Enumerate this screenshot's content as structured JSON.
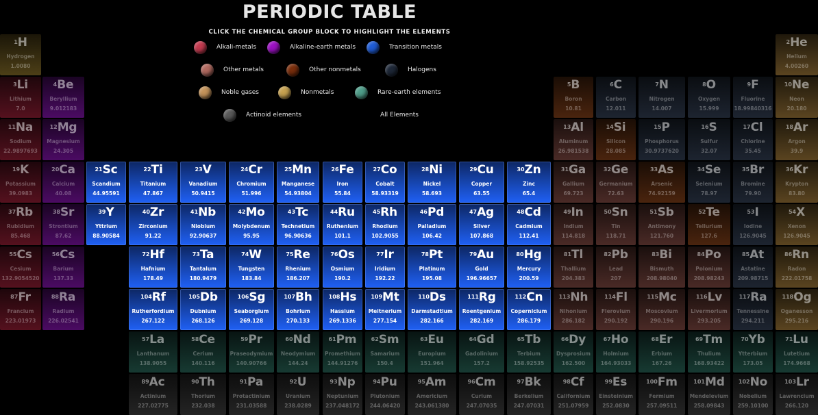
{
  "header": {
    "title": "PERIODIC TABLE",
    "subtitle": "CLICK THE CHEMICAL GROUP BLOCK TO HIGHLIGHT THE ELEMENTS"
  },
  "legend": [
    {
      "label": "Alkali-metals",
      "color": "#c43a4f"
    },
    {
      "label": "Alkaline-earth metals",
      "color": "#9c10c4"
    },
    {
      "label": "Transition metals",
      "color": "#1f5cd6"
    },
    {
      "label": "Other metals",
      "color": "#b26a60"
    },
    {
      "label": "Other nonmetals",
      "color": "#7a2e0c"
    },
    {
      "label": "Halogens",
      "color": "#1e2838"
    },
    {
      "label": "Noble gases",
      "color": "#c4935a"
    },
    {
      "label": "Nonmetals",
      "color": "#c7a250"
    },
    {
      "label": "Rare-earth elements",
      "color": "#4f9e8a"
    },
    {
      "label": "Actinoid elements",
      "color": "#5a5a5a"
    },
    {
      "label": "All Elements",
      "color": ""
    }
  ],
  "groups": {
    "alkali": {
      "bg": "#55111e"
    },
    "alkaline": {
      "bg": "#4b0b63"
    },
    "transition": {
      "bg": "#1747b5"
    },
    "othermetal": {
      "bg": "#4a2a26"
    },
    "othernonmetal": {
      "bg": "#4a240e"
    },
    "halogen": {
      "bg": "#1d2430"
    },
    "noble": {
      "bg": "#5a4420"
    },
    "nonmetal": {
      "bg": "#4d3f17"
    },
    "rareearth": {
      "bg": "#173a32"
    },
    "actinoid": {
      "bg": "#242424"
    }
  },
  "elements": [
    {
      "n": "1",
      "s": "H",
      "name": "Hydrogen",
      "w": "1.0080",
      "g": "nonmetal",
      "r": 1,
      "c": 1
    },
    {
      "n": "2",
      "s": "He",
      "name": "Helium",
      "w": "4.00260",
      "g": "noble",
      "r": 1,
      "c": 18
    },
    {
      "n": "3",
      "s": "Li",
      "name": "Lithium",
      "w": "7.0",
      "g": "alkali",
      "r": 2,
      "c": 1
    },
    {
      "n": "4",
      "s": "Be",
      "name": "Beryllium",
      "w": "9.012183",
      "g": "alkaline",
      "r": 2,
      "c": 2
    },
    {
      "n": "5",
      "s": "B",
      "name": "Boron",
      "w": "10.81",
      "g": "othernonmetal",
      "r": 2,
      "c": 13
    },
    {
      "n": "6",
      "s": "C",
      "name": "Carbon",
      "w": "12.011",
      "g": "halogen",
      "r": 2,
      "c": 14
    },
    {
      "n": "7",
      "s": "N",
      "name": "Nitrogen",
      "w": "14.007",
      "g": "halogen",
      "r": 2,
      "c": 15
    },
    {
      "n": "8",
      "s": "O",
      "name": "Oxygen",
      "w": "15.999",
      "g": "halogen",
      "r": 2,
      "c": 16
    },
    {
      "n": "9",
      "s": "F",
      "name": "Fluorine",
      "w": "18.99840316",
      "g": "halogen",
      "r": 2,
      "c": 17
    },
    {
      "n": "10",
      "s": "Ne",
      "name": "Neon",
      "w": "20.180",
      "g": "noble",
      "r": 2,
      "c": 18
    },
    {
      "n": "11",
      "s": "Na",
      "name": "Sodium",
      "w": "22.9897693",
      "g": "alkali",
      "r": 3,
      "c": 1
    },
    {
      "n": "12",
      "s": "Mg",
      "name": "Magnesium",
      "w": "24.305",
      "g": "alkaline",
      "r": 3,
      "c": 2
    },
    {
      "n": "13",
      "s": "Al",
      "name": "Aluminum",
      "w": "26.981538",
      "g": "othermetal",
      "r": 3,
      "c": 13
    },
    {
      "n": "14",
      "s": "Si",
      "name": "Silicon",
      "w": "28.085",
      "g": "othernonmetal",
      "r": 3,
      "c": 14
    },
    {
      "n": "15",
      "s": "P",
      "name": "Phosphorus",
      "w": "30.9737620",
      "g": "halogen",
      "r": 3,
      "c": 15
    },
    {
      "n": "16",
      "s": "S",
      "name": "Sulfur",
      "w": "32.07",
      "g": "halogen",
      "r": 3,
      "c": 16
    },
    {
      "n": "17",
      "s": "Cl",
      "name": "Chlorine",
      "w": "35.45",
      "g": "halogen",
      "r": 3,
      "c": 17
    },
    {
      "n": "18",
      "s": "Ar",
      "name": "Argon",
      "w": "39.9",
      "g": "noble",
      "r": 3,
      "c": 18
    },
    {
      "n": "19",
      "s": "K",
      "name": "Potassium",
      "w": "39.0983",
      "g": "alkali",
      "r": 4,
      "c": 1
    },
    {
      "n": "20",
      "s": "Ca",
      "name": "Calcium",
      "w": "40.08",
      "g": "alkaline",
      "r": 4,
      "c": 2
    },
    {
      "n": "21",
      "s": "Sc",
      "name": "Scandium",
      "w": "44.95591",
      "g": "transition",
      "r": 4,
      "c": 3
    },
    {
      "n": "22",
      "s": "Ti",
      "name": "Titanium",
      "w": "47.867",
      "g": "transition",
      "r": 4,
      "c": 4
    },
    {
      "n": "23",
      "s": "V",
      "name": "Vanadium",
      "w": "50.9415",
      "g": "transition",
      "r": 4,
      "c": 5
    },
    {
      "n": "24",
      "s": "Cr",
      "name": "Chromium",
      "w": "51.996",
      "g": "transition",
      "r": 4,
      "c": 6
    },
    {
      "n": "25",
      "s": "Mn",
      "name": "Manganese",
      "w": "54.93804",
      "g": "transition",
      "r": 4,
      "c": 7
    },
    {
      "n": "26",
      "s": "Fe",
      "name": "Iron",
      "w": "55.84",
      "g": "transition",
      "r": 4,
      "c": 8
    },
    {
      "n": "27",
      "s": "Co",
      "name": "Cobalt",
      "w": "58.93319",
      "g": "transition",
      "r": 4,
      "c": 9
    },
    {
      "n": "28",
      "s": "Ni",
      "name": "Nickel",
      "w": "58.693",
      "g": "transition",
      "r": 4,
      "c": 10
    },
    {
      "n": "29",
      "s": "Cu",
      "name": "Copper",
      "w": "63.55",
      "g": "transition",
      "r": 4,
      "c": 11
    },
    {
      "n": "30",
      "s": "Zn",
      "name": "Zinc",
      "w": "65.4",
      "g": "transition",
      "r": 4,
      "c": 12
    },
    {
      "n": "31",
      "s": "Ga",
      "name": "Gallium",
      "w": "69.723",
      "g": "othermetal",
      "r": 4,
      "c": 13
    },
    {
      "n": "32",
      "s": "Ge",
      "name": "Germanium",
      "w": "72.63",
      "g": "othermetal",
      "r": 4,
      "c": 14
    },
    {
      "n": "33",
      "s": "As",
      "name": "Arsenic",
      "w": "74.92159",
      "g": "othernonmetal",
      "r": 4,
      "c": 15
    },
    {
      "n": "34",
      "s": "Se",
      "name": "Selenium",
      "w": "78.97",
      "g": "halogen",
      "r": 4,
      "c": 16
    },
    {
      "n": "35",
      "s": "Br",
      "name": "Bromine",
      "w": "79.90",
      "g": "halogen",
      "r": 4,
      "c": 17
    },
    {
      "n": "36",
      "s": "Kr",
      "name": "Krypton",
      "w": "83.80",
      "g": "noble",
      "r": 4,
      "c": 18
    },
    {
      "n": "37",
      "s": "Rb",
      "name": "Rubidium",
      "w": "85.468",
      "g": "alkali",
      "r": 5,
      "c": 1
    },
    {
      "n": "38",
      "s": "Sr",
      "name": "Strontium",
      "w": "87.62",
      "g": "alkaline",
      "r": 5,
      "c": 2
    },
    {
      "n": "39",
      "s": "Y",
      "name": "Yttrium",
      "w": "88.90584",
      "g": "transition",
      "r": 5,
      "c": 3
    },
    {
      "n": "40",
      "s": "Zr",
      "name": "Zirconium",
      "w": "91.22",
      "g": "transition",
      "r": 5,
      "c": 4
    },
    {
      "n": "41",
      "s": "Nb",
      "name": "Niobium",
      "w": "92.90637",
      "g": "transition",
      "r": 5,
      "c": 5
    },
    {
      "n": "42",
      "s": "Mo",
      "name": "Molybdenum",
      "w": "95.95",
      "g": "transition",
      "r": 5,
      "c": 6
    },
    {
      "n": "43",
      "s": "Tc",
      "name": "Technetium",
      "w": "96.90636",
      "g": "transition",
      "r": 5,
      "c": 7
    },
    {
      "n": "44",
      "s": "Ru",
      "name": "Ruthenium",
      "w": "101.1",
      "g": "transition",
      "r": 5,
      "c": 8
    },
    {
      "n": "45",
      "s": "Rh",
      "name": "Rhodium",
      "w": "102.9055",
      "g": "transition",
      "r": 5,
      "c": 9
    },
    {
      "n": "46",
      "s": "Pd",
      "name": "Palladium",
      "w": "106.42",
      "g": "transition",
      "r": 5,
      "c": 10
    },
    {
      "n": "47",
      "s": "Ag",
      "name": "Silver",
      "w": "107.868",
      "g": "transition",
      "r": 5,
      "c": 11
    },
    {
      "n": "48",
      "s": "Cd",
      "name": "Cadmium",
      "w": "112.41",
      "g": "transition",
      "r": 5,
      "c": 12
    },
    {
      "n": "49",
      "s": "In",
      "name": "Indium",
      "w": "114.818",
      "g": "othermetal",
      "r": 5,
      "c": 13
    },
    {
      "n": "50",
      "s": "Sn",
      "name": "Tin",
      "w": "118.71",
      "g": "othermetal",
      "r": 5,
      "c": 14
    },
    {
      "n": "51",
      "s": "Sb",
      "name": "Antimony",
      "w": "121.760",
      "g": "othermetal",
      "r": 5,
      "c": 15
    },
    {
      "n": "52",
      "s": "Te",
      "name": "Tellurium",
      "w": "127.6",
      "g": "othernonmetal",
      "r": 5,
      "c": 16
    },
    {
      "n": "53",
      "s": "I",
      "name": "Iodine",
      "w": "126.9045",
      "g": "halogen",
      "r": 5,
      "c": 17
    },
    {
      "n": "54",
      "s": "X",
      "name": "Xenon",
      "w": "126.9045",
      "g": "noble",
      "r": 5,
      "c": 18
    },
    {
      "n": "55",
      "s": "Cs",
      "name": "Cesium",
      "w": "132.9054520",
      "g": "alkali",
      "r": 6,
      "c": 1
    },
    {
      "n": "56",
      "s": "Cs",
      "name": "Barium",
      "w": "137.33",
      "g": "alkaline",
      "r": 6,
      "c": 2
    },
    {
      "n": "72",
      "s": "Hf",
      "name": "Hafnium",
      "w": "178.49",
      "g": "transition",
      "r": 6,
      "c": 4
    },
    {
      "n": "73",
      "s": "Ta",
      "name": "Tantalum",
      "w": "180.9479",
      "g": "transition",
      "r": 6,
      "c": 5
    },
    {
      "n": "74",
      "s": "W",
      "name": "Tungsten",
      "w": "183.84",
      "g": "transition",
      "r": 6,
      "c": 6
    },
    {
      "n": "75",
      "s": "Re",
      "name": "Rhenium",
      "w": "186.207",
      "g": "transition",
      "r": 6,
      "c": 7
    },
    {
      "n": "76",
      "s": "Os",
      "name": "Osmium",
      "w": "190.2",
      "g": "transition",
      "r": 6,
      "c": 8
    },
    {
      "n": "77",
      "s": "Ir",
      "name": "Iridium",
      "w": "192.22",
      "g": "transition",
      "r": 6,
      "c": 9
    },
    {
      "n": "78",
      "s": "Pt",
      "name": "Platinum",
      "w": "195.08",
      "g": "transition",
      "r": 6,
      "c": 10
    },
    {
      "n": "79",
      "s": "Au",
      "name": "Gold",
      "w": "196.96657",
      "g": "transition",
      "r": 6,
      "c": 11
    },
    {
      "n": "80",
      "s": "Hg",
      "name": "Mercury",
      "w": "200.59",
      "g": "transition",
      "r": 6,
      "c": 12
    },
    {
      "n": "81",
      "s": "Tl",
      "name": "Thallium",
      "w": "204.383",
      "g": "othermetal",
      "r": 6,
      "c": 13
    },
    {
      "n": "82",
      "s": "Pb",
      "name": "Lead",
      "w": "207",
      "g": "othermetal",
      "r": 6,
      "c": 14
    },
    {
      "n": "83",
      "s": "Bi",
      "name": "Bismuth",
      "w": "208.98040",
      "g": "othermetal",
      "r": 6,
      "c": 15
    },
    {
      "n": "84",
      "s": "Po",
      "name": "Polonium",
      "w": "208.98243",
      "g": "othermetal",
      "r": 6,
      "c": 16
    },
    {
      "n": "85",
      "s": "At",
      "name": "Astatine",
      "w": "209.98715",
      "g": "halogen",
      "r": 6,
      "c": 17
    },
    {
      "n": "86",
      "s": "Rn",
      "name": "Radon",
      "w": "222.01758",
      "g": "noble",
      "r": 6,
      "c": 18
    },
    {
      "n": "87",
      "s": "Fr",
      "name": "Francium",
      "w": "223.01973",
      "g": "alkali",
      "r": 7,
      "c": 1
    },
    {
      "n": "88",
      "s": "Ra",
      "name": "Radium",
      "w": "226.02541",
      "g": "alkaline",
      "r": 7,
      "c": 2
    },
    {
      "n": "104",
      "s": "Rf",
      "name": "Rutherfordium",
      "w": "267.122",
      "g": "transition",
      "r": 7,
      "c": 4
    },
    {
      "n": "105",
      "s": "Db",
      "name": "Dubnium",
      "w": "268.126",
      "g": "transition",
      "r": 7,
      "c": 5
    },
    {
      "n": "106",
      "s": "Sg",
      "name": "Seaborgium",
      "w": "269.128",
      "g": "transition",
      "r": 7,
      "c": 6
    },
    {
      "n": "107",
      "s": "Bh",
      "name": "Bohrium",
      "w": "270.133",
      "g": "transition",
      "r": 7,
      "c": 7
    },
    {
      "n": "108",
      "s": "Hs",
      "name": "Hassium",
      "w": "269.1336",
      "g": "transition",
      "r": 7,
      "c": 8
    },
    {
      "n": "109",
      "s": "Mt",
      "name": "Meitnerium",
      "w": "277.154",
      "g": "transition",
      "r": 7,
      "c": 9
    },
    {
      "n": "110",
      "s": "Ds",
      "name": "Darmstadtium",
      "w": "282.166",
      "g": "transition",
      "r": 7,
      "c": 10
    },
    {
      "n": "111",
      "s": "Rg",
      "name": "Roentgenium",
      "w": "282.169",
      "g": "transition",
      "r": 7,
      "c": 11
    },
    {
      "n": "112",
      "s": "Cn",
      "name": "Copernicium",
      "w": "286.179",
      "g": "transition",
      "r": 7,
      "c": 12
    },
    {
      "n": "113",
      "s": "Nh",
      "name": "Nihonium",
      "w": "286.182",
      "g": "othermetal",
      "r": 7,
      "c": 13
    },
    {
      "n": "114",
      "s": "Fl",
      "name": "Flerovium",
      "w": "290.192",
      "g": "othermetal",
      "r": 7,
      "c": 14
    },
    {
      "n": "115",
      "s": "Mc",
      "name": "Moscovium",
      "w": "290.196",
      "g": "othermetal",
      "r": 7,
      "c": 15
    },
    {
      "n": "116",
      "s": "Lv",
      "name": "Livermorium",
      "w": "293.205",
      "g": "othermetal",
      "r": 7,
      "c": 16
    },
    {
      "n": "117",
      "s": "Ra",
      "name": "Tennessine",
      "w": "294.211",
      "g": "halogen",
      "r": 7,
      "c": 17
    },
    {
      "n": "118",
      "s": "Og",
      "name": "Oganesson",
      "w": "295.216",
      "g": "noble",
      "r": 7,
      "c": 18
    },
    {
      "n": "57",
      "s": "La",
      "name": "Lanthanum",
      "w": "138.9055",
      "g": "rareearth",
      "r": 8,
      "c": 4
    },
    {
      "n": "58",
      "s": "Ce",
      "name": "Cerium",
      "w": "140.116",
      "g": "rareearth",
      "r": 8,
      "c": 5
    },
    {
      "n": "59",
      "s": "Pr",
      "name": "Praseodymium",
      "w": "140.90766",
      "g": "rareearth",
      "r": 8,
      "c": 6
    },
    {
      "n": "60",
      "s": "Nd",
      "name": "Neodymium",
      "w": "144.24",
      "g": "rareearth",
      "r": 8,
      "c": 7
    },
    {
      "n": "61",
      "s": "Pm",
      "name": "Promethium",
      "w": "144.91276",
      "g": "rareearth",
      "r": 8,
      "c": 8
    },
    {
      "n": "62",
      "s": "Sm",
      "name": "Samarium",
      "w": "150.4",
      "g": "rareearth",
      "r": 8,
      "c": 9
    },
    {
      "n": "63",
      "s": "Eu",
      "name": "Europium",
      "w": "151.964",
      "g": "rareearth",
      "r": 8,
      "c": 10
    },
    {
      "n": "64",
      "s": "Gd",
      "name": "Gadolinium",
      "w": "157.2",
      "g": "rareearth",
      "r": 8,
      "c": 11
    },
    {
      "n": "65",
      "s": "Tb",
      "name": "Terbium",
      "w": "158.92535",
      "g": "rareearth",
      "r": 8,
      "c": 12
    },
    {
      "n": "66",
      "s": "Dy",
      "name": "Dysprosium",
      "w": "162.500",
      "g": "rareearth",
      "r": 8,
      "c": 13
    },
    {
      "n": "67",
      "s": "Ho",
      "name": "Holmium",
      "w": "164.93033",
      "g": "rareearth",
      "r": 8,
      "c": 14
    },
    {
      "n": "68",
      "s": "Er",
      "name": "Erbium",
      "w": "167.26",
      "g": "rareearth",
      "r": 8,
      "c": 15
    },
    {
      "n": "69",
      "s": "Tm",
      "name": "Thulium",
      "w": "168.93422",
      "g": "rareearth",
      "r": 8,
      "c": 16
    },
    {
      "n": "70",
      "s": "Yb",
      "name": "Ytterbium",
      "w": "173.05",
      "g": "rareearth",
      "r": 8,
      "c": 17
    },
    {
      "n": "71",
      "s": "Lu",
      "name": "Lutetium",
      "w": "174.9668",
      "g": "rareearth",
      "r": 8,
      "c": 18
    },
    {
      "n": "89",
      "s": "Ac",
      "name": "Actinium",
      "w": "227.02775",
      "g": "actinoid",
      "r": 9,
      "c": 4
    },
    {
      "n": "90",
      "s": "Th",
      "name": "Thorium",
      "w": "232.038",
      "g": "actinoid",
      "r": 9,
      "c": 5
    },
    {
      "n": "91",
      "s": "Pa",
      "name": "Protactinium",
      "w": "231.03588",
      "g": "actinoid",
      "r": 9,
      "c": 6
    },
    {
      "n": "92",
      "s": "U",
      "name": "Uranium",
      "w": "238.0289",
      "g": "actinoid",
      "r": 9,
      "c": 7
    },
    {
      "n": "93",
      "s": "Np",
      "name": "Neptunium",
      "w": "237.048172",
      "g": "actinoid",
      "r": 9,
      "c": 8
    },
    {
      "n": "94",
      "s": "Pu",
      "name": "Plutonium",
      "w": "244.06420",
      "g": "actinoid",
      "r": 9,
      "c": 9
    },
    {
      "n": "95",
      "s": "Am",
      "name": "Americium",
      "w": "243.061380",
      "g": "actinoid",
      "r": 9,
      "c": 10
    },
    {
      "n": "96",
      "s": "Cm",
      "name": "Curium",
      "w": "247.07035",
      "g": "actinoid",
      "r": 9,
      "c": 11
    },
    {
      "n": "97",
      "s": "Bk",
      "name": "Berkelium",
      "w": "247.07031",
      "g": "actinoid",
      "r": 9,
      "c": 12
    },
    {
      "n": "98",
      "s": "Cf",
      "name": "Californium",
      "w": "251.07959",
      "g": "actinoid",
      "r": 9,
      "c": 13
    },
    {
      "n": "99",
      "s": "Es",
      "name": "Einsteinium",
      "w": "252.0830",
      "g": "actinoid",
      "r": 9,
      "c": 14
    },
    {
      "n": "100",
      "s": "Fm",
      "name": "Fermium",
      "w": "257.09511",
      "g": "actinoid",
      "r": 9,
      "c": 15
    },
    {
      "n": "101",
      "s": "Md",
      "name": "Mendelevium",
      "w": "258.09843",
      "g": "actinoid",
      "r": 9,
      "c": 16
    },
    {
      "n": "102",
      "s": "No",
      "name": "Nobelium",
      "w": "259.10100",
      "g": "actinoid",
      "r": 9,
      "c": 17
    },
    {
      "n": "103",
      "s": "Lr",
      "name": "Lawrencium",
      "w": "266.120",
      "g": "actinoid",
      "r": 9,
      "c": 18
    }
  ],
  "highlighted_group": "transition"
}
